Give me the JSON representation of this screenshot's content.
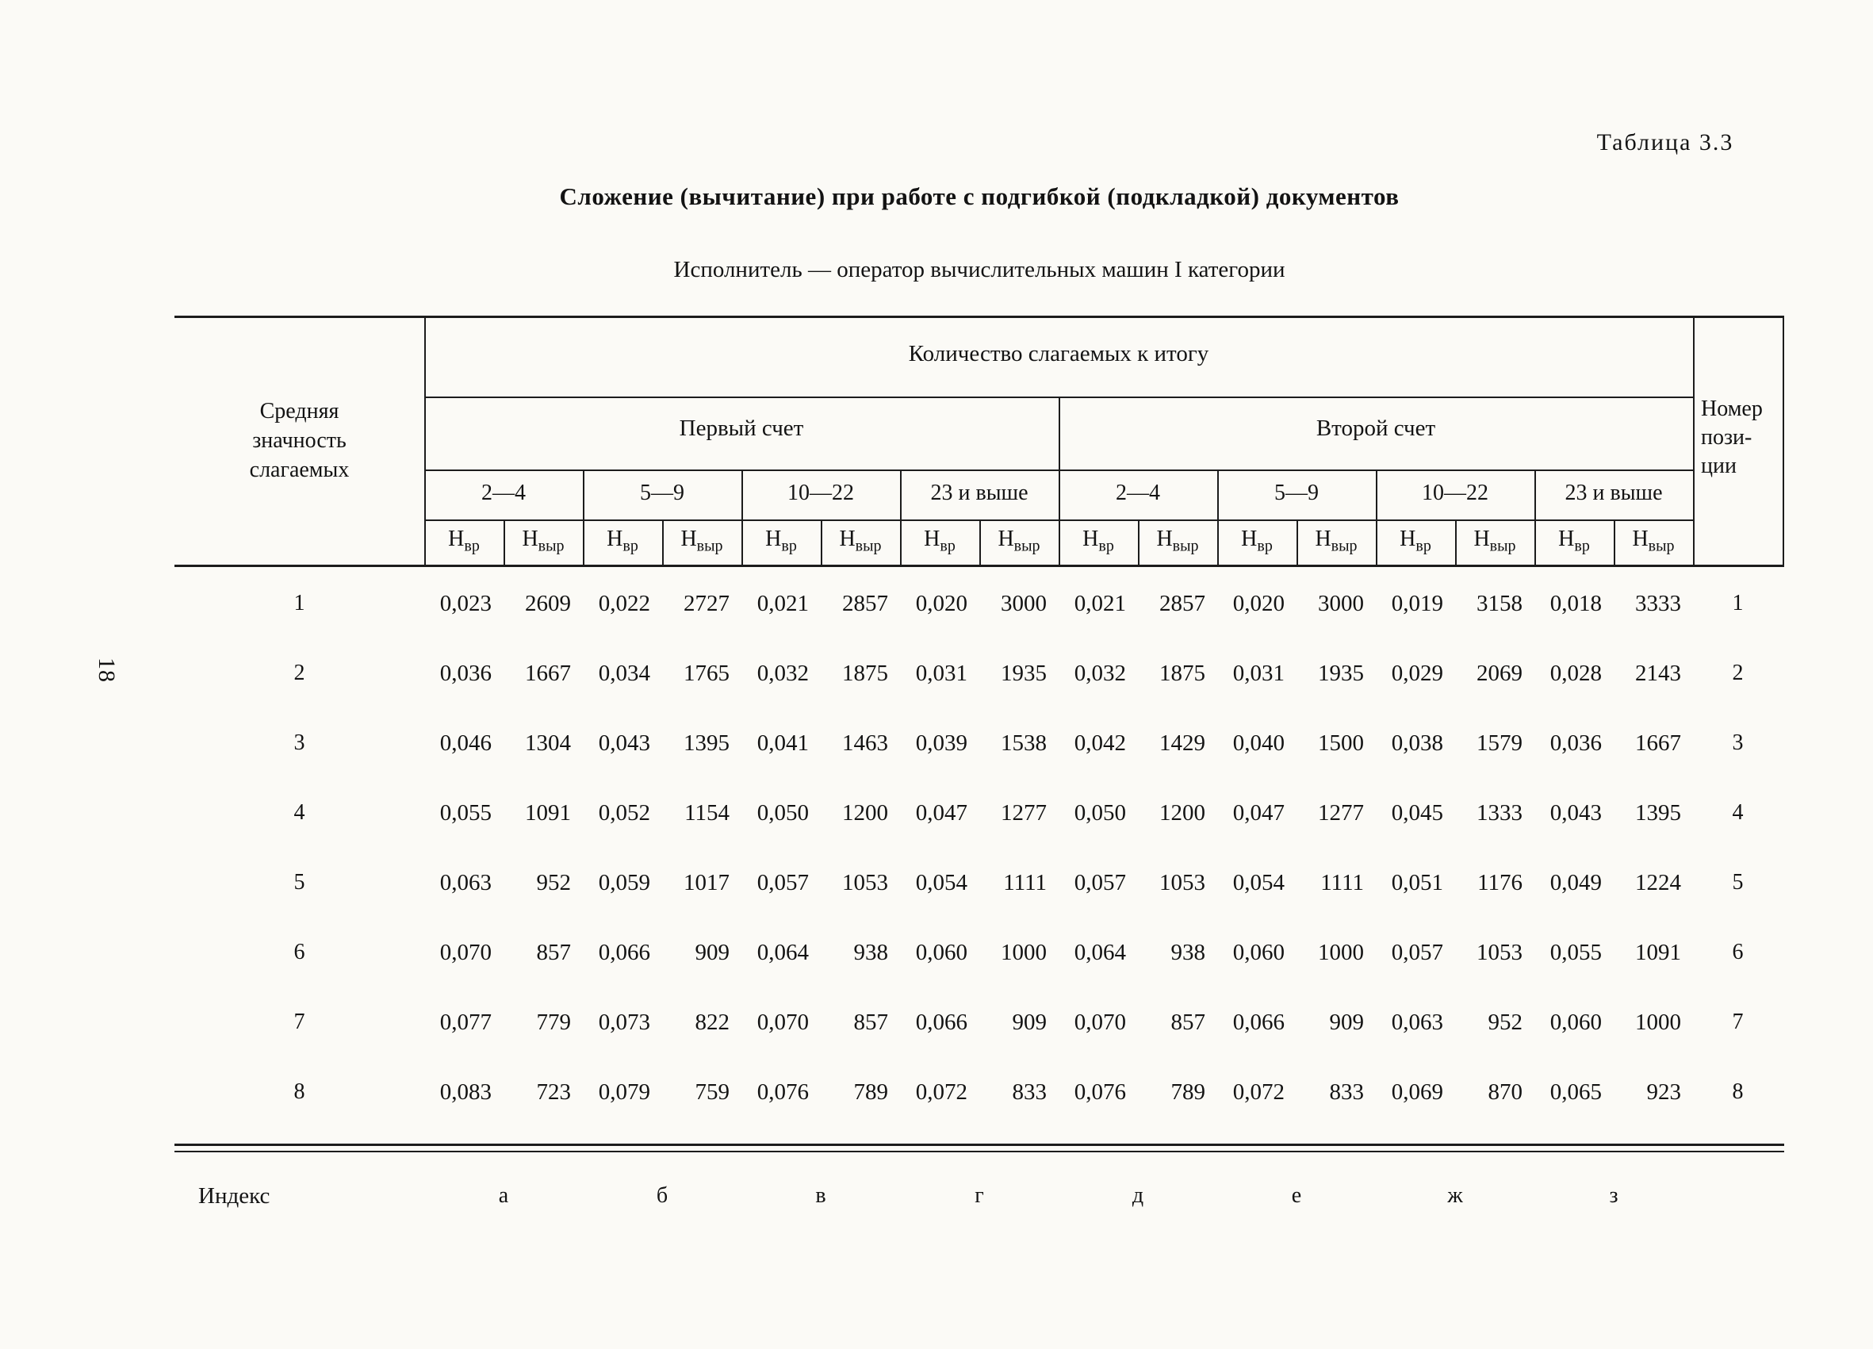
{
  "page": {
    "table_label": "Таблица 3.3",
    "title": "Сложение (вычитание) при работе с подгибкой (подкладкой) документов",
    "subtitle": "Исполнитель — оператор вычислительных машин I категории",
    "side_page_number": "18"
  },
  "table": {
    "left_header_lines": [
      "Средняя",
      "значность",
      "слагаемых"
    ],
    "span_header": "Количество слагаемых к итогу",
    "group_headers": [
      "Первый счет",
      "Второй счет"
    ],
    "range_headers": [
      "2—4",
      "5—9",
      "10—22",
      "23 и выше",
      "2—4",
      "5—9",
      "10—22",
      "23 и выше"
    ],
    "unit_header": {
      "base": "Н",
      "sub_time": "вр",
      "sub_out": "выр"
    },
    "right_header_lines": [
      "Номер",
      "пози-",
      "ции"
    ],
    "rows": [
      {
        "avg": "1",
        "values": [
          "0,023",
          "2609",
          "0,022",
          "2727",
          "0,021",
          "2857",
          "0,020",
          "3000",
          "0,021",
          "2857",
          "0,020",
          "3000",
          "0,019",
          "3158",
          "0,018",
          "3333"
        ],
        "pos": "1"
      },
      {
        "avg": "2",
        "values": [
          "0,036",
          "1667",
          "0,034",
          "1765",
          "0,032",
          "1875",
          "0,031",
          "1935",
          "0,032",
          "1875",
          "0,031",
          "1935",
          "0,029",
          "2069",
          "0,028",
          "2143"
        ],
        "pos": "2"
      },
      {
        "avg": "3",
        "values": [
          "0,046",
          "1304",
          "0,043",
          "1395",
          "0,041",
          "1463",
          "0,039",
          "1538",
          "0,042",
          "1429",
          "0,040",
          "1500",
          "0,038",
          "1579",
          "0,036",
          "1667"
        ],
        "pos": "3"
      },
      {
        "avg": "4",
        "values": [
          "0,055",
          "1091",
          "0,052",
          "1154",
          "0,050",
          "1200",
          "0,047",
          "1277",
          "0,050",
          "1200",
          "0,047",
          "1277",
          "0,045",
          "1333",
          "0,043",
          "1395"
        ],
        "pos": "4"
      },
      {
        "avg": "5",
        "values": [
          "0,063",
          "952",
          "0,059",
          "1017",
          "0,057",
          "1053",
          "0,054",
          "1111",
          "0,057",
          "1053",
          "0,054",
          "1111",
          "0,051",
          "1176",
          "0,049",
          "1224"
        ],
        "pos": "5"
      },
      {
        "avg": "6",
        "values": [
          "0,070",
          "857",
          "0,066",
          "909",
          "0,064",
          "938",
          "0,060",
          "1000",
          "0,064",
          "938",
          "0,060",
          "1000",
          "0,057",
          "1053",
          "0,055",
          "1091"
        ],
        "pos": "6"
      },
      {
        "avg": "7",
        "values": [
          "0,077",
          "779",
          "0,073",
          "822",
          "0,070",
          "857",
          "0,066",
          "909",
          "0,070",
          "857",
          "0,066",
          "909",
          "0,063",
          "952",
          "0,060",
          "1000"
        ],
        "pos": "7"
      },
      {
        "avg": "8",
        "values": [
          "0,083",
          "723",
          "0,079",
          "759",
          "0,076",
          "789",
          "0,072",
          "833",
          "0,076",
          "789",
          "0,072",
          "833",
          "0,069",
          "870",
          "0,065",
          "923"
        ],
        "pos": "8"
      }
    ],
    "index_row": {
      "label": "Индекс",
      "values": [
        "а",
        "б",
        "в",
        "г",
        "д",
        "е",
        "ж",
        "з"
      ]
    }
  }
}
